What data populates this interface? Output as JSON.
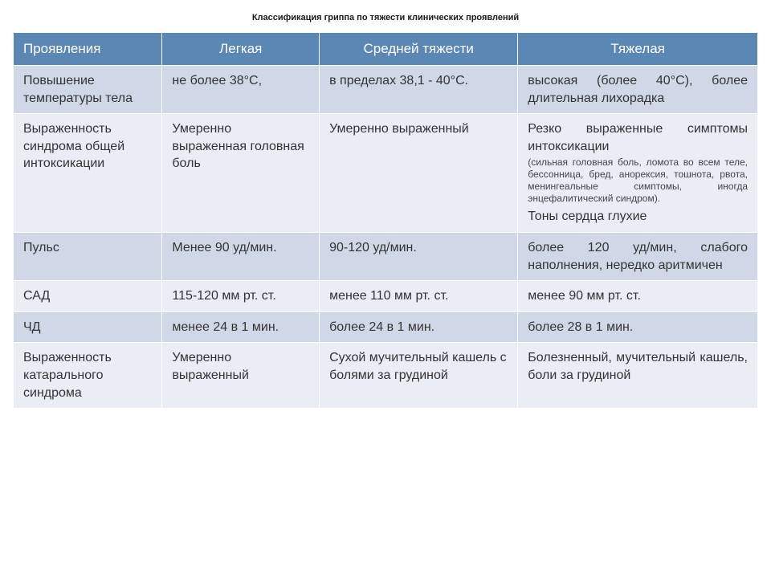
{
  "title": "Классификация гриппа по тяжести клинических проявлений",
  "table": {
    "header_bg": "#5b87b4",
    "row_colors": [
      "#d0d8e8",
      "#e9edf4"
    ],
    "col_widths": [
      "180px",
      "190px",
      "240px",
      "290px"
    ],
    "columns": [
      "Проявления",
      "Легкая",
      "Средней тяжести",
      "Тяжелая"
    ],
    "rows": [
      {
        "cells": [
          "Повышение температуры тела",
          "не более 38°С,",
          "в пределах 38,1 - 40°С.",
          "высокая (более 40°С), более длительная лихорадка"
        ]
      },
      {
        "cells": [
          "Выраженность синдрома общей интоксикации",
          "Умеренно выраженная головная боль",
          "Умеренно выраженный",
          "Резко выраженные симптомы интоксикации"
        ],
        "note": "(сильная головная боль, ломота во всем теле, бессонница, бред, анорексия, тошнота, рвота, менингеальные симптомы, иногда энцефалитический синдром).",
        "after_note": "Тоны сердца глухие"
      },
      {
        "cells": [
          "Пульс",
          "Менее 90 уд/мин.",
          "90-120 уд/мин.",
          "более 120 уд/мин, слабого наполнения, нередко аритмичен"
        ]
      },
      {
        "cells": [
          "САД",
          "115-120 мм рт. ст.",
          "менее 110 мм рт. ст.",
          "менее 90 мм рт. ст."
        ]
      },
      {
        "cells": [
          "ЧД",
          "менее 24 в 1 мин.",
          "более 24 в 1 мин.",
          "более 28 в 1 мин."
        ]
      },
      {
        "cells": [
          "Выраженность катарального синдрома",
          "Умеренно выраженный",
          "Сухой мучительный кашель с болями за грудиной",
          "Болезненный, мучительный кашель, боли за грудиной"
        ]
      }
    ]
  }
}
